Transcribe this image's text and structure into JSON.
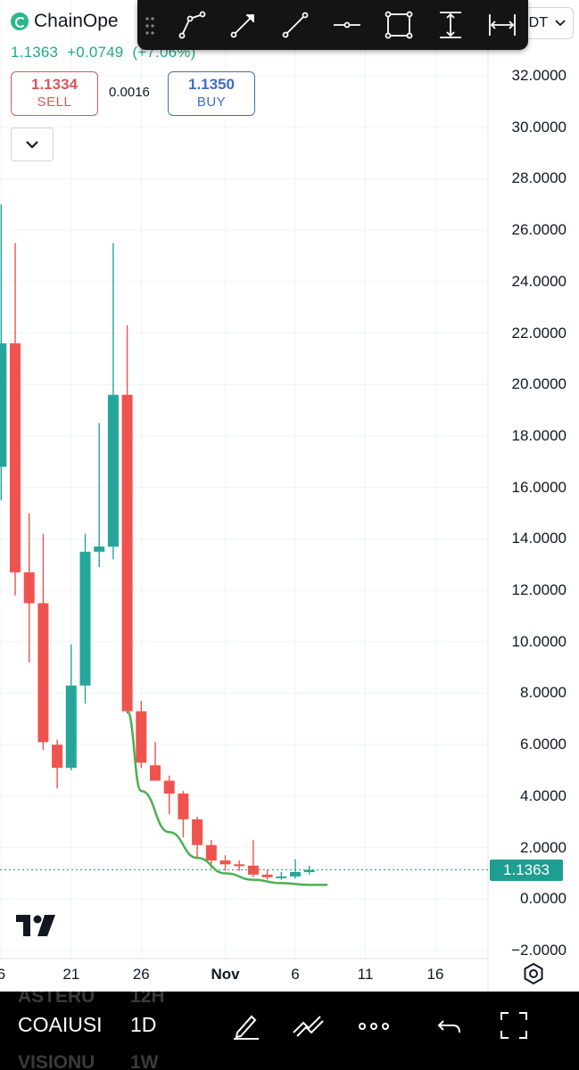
{
  "header": {
    "symbol_name": "ChainOpe",
    "last_price": "1.1363",
    "change_abs": "+0.0749",
    "change_pct": "(+7.06%)"
  },
  "trade": {
    "sell_price": "1.1334",
    "sell_label": "SELL",
    "spread": "0.0016",
    "buy_price": "1.1350",
    "buy_label": "BUY"
  },
  "pair_suffix": "DT",
  "drawing_toolbar": {
    "tools": [
      "path-icon",
      "arrow-line-icon",
      "trend-line-icon",
      "horizontal-ray-icon",
      "rectangle-icon",
      "vertical-measure-icon",
      "horizontal-measure-icon"
    ]
  },
  "bottom_bar": {
    "symbol": "COAIUSI",
    "timeframe": "1D",
    "ghost_symbols": [
      "ASTERU",
      "VISIONU"
    ],
    "ghost_timeframes": [
      "12H",
      "1W"
    ]
  },
  "colors": {
    "up": "#26a69a",
    "down": "#ef5350",
    "curve": "#4caf50",
    "price_tag": "#1e9e90",
    "toolbar_bg": "#141414"
  },
  "chart_data": {
    "type": "candlestick",
    "title": "",
    "y_axis": {
      "min": -2,
      "max": 32,
      "ticks": [
        "32.0000",
        "30.0000",
        "28.0000",
        "26.0000",
        "24.0000",
        "22.0000",
        "20.0000",
        "18.0000",
        "16.0000",
        "14.0000",
        "12.0000",
        "10.0000",
        "8.0000",
        "6.0000",
        "4.0000",
        "2.0000",
        "0.0000",
        "−2.0000"
      ]
    },
    "x_axis": {
      "ticks": [
        {
          "label": "6",
          "day": 16
        },
        {
          "label": "21",
          "day": 21
        },
        {
          "label": "26",
          "day": 26
        },
        {
          "label": "Nov",
          "day": 32
        },
        {
          "label": "6",
          "day": 37
        },
        {
          "label": "11",
          "day": 42
        },
        {
          "label": "16",
          "day": 47
        }
      ]
    },
    "current_price": 1.1363,
    "current_price_label": "1.1363",
    "candles": [
      {
        "day": 16,
        "o": 16.8,
        "h": 27.0,
        "l": 15.5,
        "c": 21.6
      },
      {
        "day": 17,
        "o": 21.6,
        "h": 25.5,
        "l": 11.8,
        "c": 12.7
      },
      {
        "day": 18,
        "o": 12.7,
        "h": 15.0,
        "l": 9.2,
        "c": 11.5
      },
      {
        "day": 19,
        "o": 11.5,
        "h": 14.2,
        "l": 5.8,
        "c": 6.1
      },
      {
        "day": 20,
        "o": 6.0,
        "h": 6.2,
        "l": 4.3,
        "c": 5.1
      },
      {
        "day": 21,
        "o": 5.1,
        "h": 9.9,
        "l": 5.0,
        "c": 8.3
      },
      {
        "day": 22,
        "o": 8.3,
        "h": 14.2,
        "l": 7.6,
        "c": 13.5
      },
      {
        "day": 23,
        "o": 13.5,
        "h": 18.5,
        "l": 12.9,
        "c": 13.7
      },
      {
        "day": 24,
        "o": 13.7,
        "h": 25.5,
        "l": 13.2,
        "c": 19.6
      },
      {
        "day": 25,
        "o": 19.6,
        "h": 22.3,
        "l": 7.2,
        "c": 7.3
      },
      {
        "day": 26,
        "o": 7.3,
        "h": 7.7,
        "l": 5.1,
        "c": 5.3
      },
      {
        "day": 27,
        "o": 5.2,
        "h": 6.1,
        "l": 4.6,
        "c": 4.6
      },
      {
        "day": 28,
        "o": 4.6,
        "h": 4.8,
        "l": 3.3,
        "c": 4.1
      },
      {
        "day": 29,
        "o": 4.1,
        "h": 4.2,
        "l": 2.4,
        "c": 3.1
      },
      {
        "day": 30,
        "o": 3.1,
        "h": 3.2,
        "l": 1.6,
        "c": 2.1
      },
      {
        "day": 31,
        "o": 2.1,
        "h": 2.3,
        "l": 1.2,
        "c": 1.5
      },
      {
        "day": 32,
        "o": 1.5,
        "h": 1.7,
        "l": 1.1,
        "c": 1.35
      },
      {
        "day": 33,
        "o": 1.35,
        "h": 1.5,
        "l": 1.1,
        "c": 1.3
      },
      {
        "day": 34,
        "o": 1.3,
        "h": 2.3,
        "l": 0.85,
        "c": 0.95
      },
      {
        "day": 35,
        "o": 0.95,
        "h": 1.15,
        "l": 0.75,
        "c": 0.85
      },
      {
        "day": 36,
        "o": 0.85,
        "h": 1.05,
        "l": 0.75,
        "c": 0.88
      },
      {
        "day": 37,
        "o": 0.88,
        "h": 1.55,
        "l": 0.8,
        "c": 1.05
      },
      {
        "day": 38,
        "o": 1.05,
        "h": 1.3,
        "l": 0.95,
        "c": 1.1364
      }
    ],
    "annotation_curve": {
      "type": "curve",
      "color": "#4caf50",
      "points": [
        [
          25,
          7.3
        ],
        [
          26,
          4.2
        ],
        [
          28,
          2.6
        ],
        [
          30,
          1.6
        ],
        [
          32,
          1.0
        ],
        [
          34,
          0.75
        ],
        [
          36,
          0.62
        ],
        [
          38,
          0.55
        ],
        [
          39.3,
          0.55
        ]
      ]
    }
  }
}
